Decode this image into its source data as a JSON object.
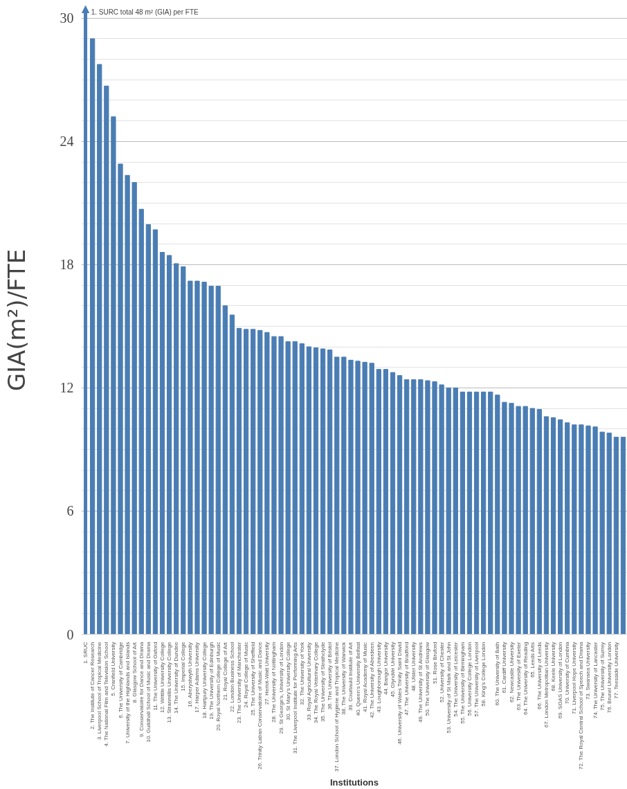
{
  "chart_data": {
    "type": "bar",
    "xlabel": "Institutions",
    "ylabel": "GIA(m²)/FTE",
    "categories": [
      "1. SRUC",
      "2. The Institute of Cancer Research",
      "3. Liverpool School of Tropical Medicine",
      "4. The National Film and Television School",
      "5. Cranfield University",
      "6. The University of Cambridge",
      "7. University of the Highlands and Islands",
      "8. Glasgow School of Art",
      "9. Conservatoire for Dance and Drama",
      "10. Guildhall School of Music and Drama",
      "11. The University of Oxford",
      "12. Writtle University College",
      "13. Stranmillis University College",
      "14. The University of Dundee",
      "15. Imperial College",
      "16. Aberystwyth University",
      "17. Harper Adams University",
      "18. Hartpury University College",
      "19. The University of Edinburgh",
      "20. Royal Northern College of Music",
      "21. Royal College of Art",
      "22. London Business School",
      "23. The University of Manchester",
      "24. Royal College of Music",
      "25. The University of Sheffield",
      "26. Trinity Laban Conservatoire of Music and Dance",
      "27. Heriot-Watt University",
      "28. The University of Nottingham",
      "29. St George's, University of London",
      "30. St Mary's University College",
      "31. The Liverpool Institute for Performing Arts",
      "32. The University of York",
      "33. Royal Agricultural University",
      "34. The Royal Veterinary College",
      "35. The University of Strathclyde",
      "36. The University of Bristol",
      "37. London School of Hygiene and Tropical Medicine",
      "38. The University of Warwick",
      "39. Courtauld Institute of Art",
      "40. Queen's University Belfast",
      "41. Royal Academy of Music",
      "42. The University of Aberdeen",
      "43. Loughborough University",
      "44. Bangor University",
      "45. Glyndŵr University",
      "46. University of Wales Trinity Saint David",
      "47. The University of Bradford",
      "48. Ulster University",
      "49. The University of St Andrews",
      "50. The University of Glasgow",
      "51. Rose Bruford",
      "52. University of Chester",
      "53. University of St Mark and St John",
      "54. The University of Leicester",
      "55. The University of Birmingham",
      "56. University College London",
      "57. The University of Liverpool",
      "58. King's College London",
      null,
      "60. The University of Bath",
      "61. Cardiff University",
      "62. Newcastle University",
      "63. The University of Exeter",
      "64. The University of Reading",
      "65. Leeds Arts",
      "66. The University of Leeds",
      "67. London Metropolitan University",
      "68. Keele University",
      "69. SOAS University of London",
      "70. University of Cumbria",
      "71. Liverpool Hope University",
      "72. The Royal Central School of Speech and Drama",
      "73. Swansea University",
      "74. The University of Lancaster",
      "75. The University of Surrey",
      "76. Brunel University London",
      "77. Teesside University",
      null
    ],
    "values": [
      null,
      29.0,
      27.75,
      26.7,
      25.2,
      22.9,
      22.35,
      22.0,
      20.7,
      19.95,
      19.7,
      18.6,
      18.45,
      18.05,
      17.9,
      17.2,
      17.2,
      17.15,
      16.95,
      16.95,
      16.0,
      15.55,
      14.9,
      14.85,
      14.85,
      14.8,
      14.7,
      14.5,
      14.5,
      14.25,
      14.25,
      14.15,
      14.0,
      13.95,
      13.9,
      13.85,
      13.5,
      13.5,
      13.35,
      13.3,
      13.25,
      13.2,
      12.9,
      12.9,
      12.75,
      12.6,
      12.4,
      12.4,
      12.4,
      12.35,
      12.3,
      12.15,
      12.0,
      12.0,
      11.8,
      11.8,
      11.8,
      11.8,
      11.8,
      11.65,
      11.3,
      11.25,
      11.1,
      11.1,
      11.0,
      10.95,
      10.6,
      10.55,
      10.45,
      10.3,
      10.2,
      10.2,
      10.15,
      10.1,
      9.85,
      9.8,
      9.6,
      9.6
    ],
    "color": "#4a7db3",
    "ylim": [
      0,
      30.6
    ],
    "yticks": [
      0,
      6,
      12,
      18,
      24,
      30
    ],
    "grid": "y",
    "annotations": [
      "1. SURC total 48 m² (GIA) per FTE"
    ]
  }
}
